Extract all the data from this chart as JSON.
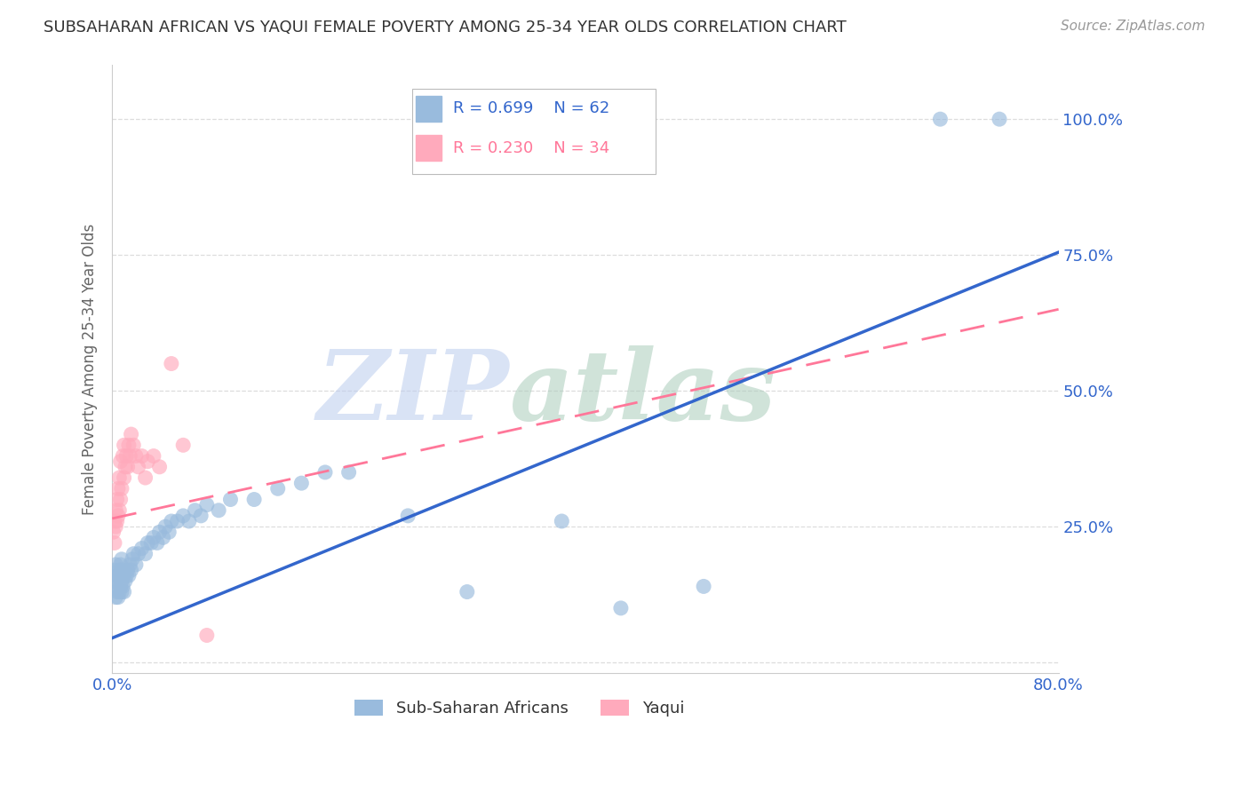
{
  "title": "SUBSAHARAN AFRICAN VS YAQUI FEMALE POVERTY AMONG 25-34 YEAR OLDS CORRELATION CHART",
  "source": "Source: ZipAtlas.com",
  "ylabel": "Female Poverty Among 25-34 Year Olds",
  "legend1_label": "Sub-Saharan Africans",
  "legend2_label": "Yaqui",
  "r1": 0.699,
  "n1": 62,
  "r2": 0.23,
  "n2": 34,
  "blue_color": "#99BBDD",
  "pink_color": "#FFAABC",
  "trend_blue": "#3366CC",
  "trend_pink": "#FF7799",
  "xlim": [
    0.0,
    0.8
  ],
  "ylim": [
    -0.02,
    1.1
  ],
  "xticks": [
    0.0,
    0.1,
    0.2,
    0.3,
    0.4,
    0.5,
    0.6,
    0.7,
    0.8
  ],
  "xtick_labels": [
    "0.0%",
    "",
    "",
    "",
    "",
    "",
    "",
    "",
    "80.0%"
  ],
  "ytick_positions": [
    0.0,
    0.25,
    0.5,
    0.75,
    1.0
  ],
  "ytick_labels": [
    "",
    "25.0%",
    "50.0%",
    "75.0%",
    "100.0%"
  ],
  "blue_x": [
    0.001,
    0.002,
    0.002,
    0.003,
    0.003,
    0.003,
    0.004,
    0.004,
    0.005,
    0.005,
    0.006,
    0.006,
    0.007,
    0.007,
    0.008,
    0.008,
    0.008,
    0.009,
    0.009,
    0.01,
    0.01,
    0.011,
    0.012,
    0.013,
    0.014,
    0.015,
    0.016,
    0.017,
    0.018,
    0.02,
    0.022,
    0.025,
    0.028,
    0.03,
    0.033,
    0.035,
    0.038,
    0.04,
    0.043,
    0.045,
    0.048,
    0.05,
    0.055,
    0.06,
    0.065,
    0.07,
    0.075,
    0.08,
    0.09,
    0.1,
    0.12,
    0.14,
    0.16,
    0.18,
    0.2,
    0.25,
    0.3,
    0.38,
    0.43,
    0.5,
    0.7,
    0.75
  ],
  "blue_y": [
    0.15,
    0.14,
    0.17,
    0.12,
    0.15,
    0.18,
    0.13,
    0.16,
    0.12,
    0.16,
    0.13,
    0.17,
    0.14,
    0.18,
    0.13,
    0.15,
    0.19,
    0.14,
    0.17,
    0.13,
    0.16,
    0.15,
    0.16,
    0.17,
    0.16,
    0.18,
    0.17,
    0.19,
    0.2,
    0.18,
    0.2,
    0.21,
    0.2,
    0.22,
    0.22,
    0.23,
    0.22,
    0.24,
    0.23,
    0.25,
    0.24,
    0.26,
    0.26,
    0.27,
    0.26,
    0.28,
    0.27,
    0.29,
    0.28,
    0.3,
    0.3,
    0.32,
    0.33,
    0.35,
    0.35,
    0.27,
    0.13,
    0.26,
    0.1,
    0.14,
    1.0,
    1.0
  ],
  "pink_x": [
    0.001,
    0.002,
    0.002,
    0.003,
    0.003,
    0.004,
    0.004,
    0.005,
    0.005,
    0.006,
    0.006,
    0.007,
    0.007,
    0.008,
    0.009,
    0.01,
    0.01,
    0.011,
    0.012,
    0.013,
    0.014,
    0.015,
    0.016,
    0.018,
    0.02,
    0.022,
    0.025,
    0.028,
    0.03,
    0.035,
    0.04,
    0.05,
    0.06,
    0.08
  ],
  "pink_y": [
    0.24,
    0.22,
    0.26,
    0.25,
    0.28,
    0.26,
    0.3,
    0.27,
    0.32,
    0.28,
    0.34,
    0.3,
    0.37,
    0.32,
    0.38,
    0.34,
    0.4,
    0.36,
    0.38,
    0.36,
    0.4,
    0.38,
    0.42,
    0.4,
    0.38,
    0.36,
    0.38,
    0.34,
    0.37,
    0.38,
    0.36,
    0.55,
    0.4,
    0.05
  ],
  "watermark_top": "ZIP",
  "watermark_bottom": "atlas",
  "watermark_color_top": "#BBCCEE",
  "watermark_color_bottom": "#AACCBB",
  "background_color": "#FFFFFF",
  "title_fontsize": 13,
  "axis_tick_color": "#3366CC",
  "grid_color": "#DDDDDD"
}
